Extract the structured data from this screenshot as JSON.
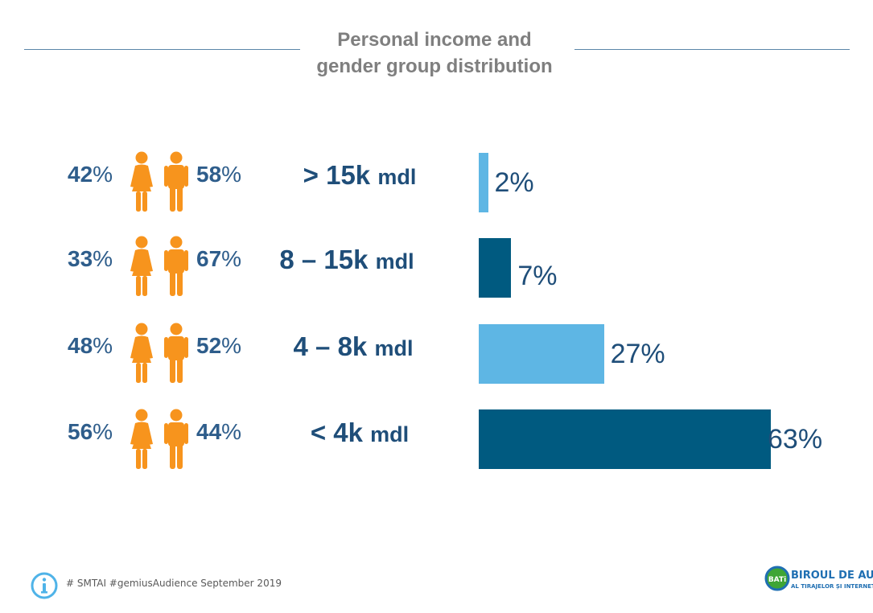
{
  "title_line1": "Personal income and",
  "title_line2": "gender group distribution",
  "colors": {
    "light": "#5eb6e4",
    "dark": "#005a80",
    "person": "#f7941d"
  },
  "chart_data": {
    "type": "bar",
    "orientation": "horizontal",
    "categories": [
      "> 15k mdl",
      "8 – 15k mdl",
      "4 – 8k mdl",
      "< 4k mdl"
    ],
    "values": [
      2,
      7,
      27,
      63
    ],
    "value_labels": [
      "2%",
      "7%",
      "27%",
      "63%"
    ],
    "xlim": [
      0,
      63
    ],
    "gender_split": {
      "female": [
        42,
        33,
        48,
        56
      ],
      "male": [
        58,
        67,
        52,
        44
      ]
    }
  },
  "rows": [
    {
      "income_main": "> 15k",
      "income_unit": "mdl",
      "female_num": "42",
      "male_num": "58",
      "sign": "%",
      "bar_label": "2%",
      "bar_color": "light"
    },
    {
      "income_main": "8 – 15k",
      "income_unit": "mdl",
      "female_num": "33",
      "male_num": "67",
      "sign": "%",
      "bar_label": "7%",
      "bar_color": "dark"
    },
    {
      "income_main": "4 – 8k",
      "income_unit": "mdl",
      "female_num": "48",
      "male_num": "52",
      "sign": "%",
      "bar_label": "27%",
      "bar_color": "light"
    },
    {
      "income_main": "< 4k",
      "income_unit": "mdl",
      "female_num": "56",
      "male_num": "44",
      "sign": "%",
      "bar_label": "63%",
      "bar_color": "dark"
    }
  ],
  "footer": {
    "note": "# SMTAI #gemiusAudience September  2019"
  },
  "logo": {
    "badge": "BATi",
    "line1": "BIROUL DE AUDIT",
    "line2": "AL TIRAJELOR ȘI INTERNETULUI"
  }
}
